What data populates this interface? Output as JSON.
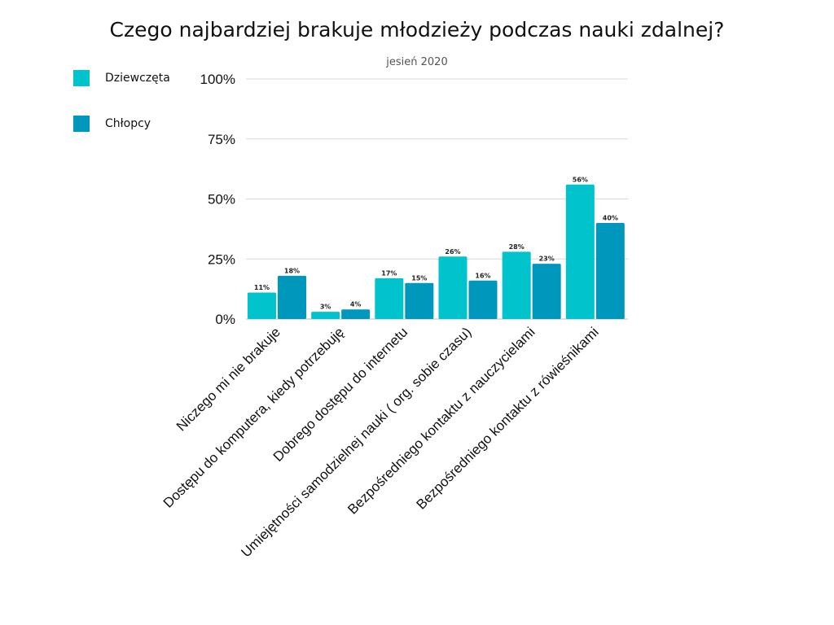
{
  "chart_data": {
    "type": "bar",
    "title": "Czego najbardziej brakuje młodzieży podczas nauki zdalnej?",
    "subtitle": "jesień 2020",
    "xlabel": "",
    "ylabel": "",
    "ylim": [
      0,
      100
    ],
    "yticks": [
      0,
      25,
      50,
      75,
      100
    ],
    "ytick_labels": [
      "0%",
      "25%",
      "50%",
      "75%",
      "100%"
    ],
    "grid": true,
    "legend_position": "top-left",
    "categories": [
      "Niczego mi nie brakuje",
      "Dostępu do komputera, kiedy potrzebuję",
      "Dobrego dostępu do internetu",
      "Umiejętności samodzielnej nauki ( org. sobie czasu)",
      "Bezpośredniego kontaktu z nauczycielami",
      "Bezpośredniego kontaktu z rówieśnikami"
    ],
    "series": [
      {
        "name": "Dziewczęta",
        "color": "#00C3CC",
        "values": [
          11,
          3,
          17,
          26,
          28,
          56
        ],
        "labels": [
          "11%",
          "3%",
          "17%",
          "26%",
          "28%",
          "56%"
        ]
      },
      {
        "name": "Chłopcy",
        "color": "#0097BD",
        "values": [
          18,
          4,
          15,
          16,
          23,
          40
        ],
        "labels": [
          "18%",
          "4%",
          "15%",
          "16%",
          "23%",
          "40%"
        ]
      }
    ]
  }
}
